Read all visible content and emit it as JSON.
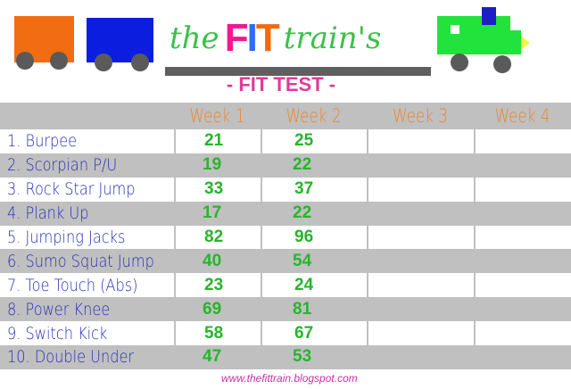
{
  "logo": {
    "prefix": "the",
    "fit": "FIT",
    "suffix": "train's"
  },
  "subtitle": "- FIT TEST -",
  "colors": {
    "orange_car": "#f26d12",
    "blue_car": "#0b1ee0",
    "engine": "#22e33c",
    "header_row": "#c0c0c0",
    "week_text": "#e8882f",
    "exercise_text": "#2a2fb8",
    "score_text": "#27b52b",
    "url_text": "#c930a8"
  },
  "table": {
    "headers": [
      "",
      "Week 1",
      "Week 2",
      "Week 3",
      "Week 4"
    ],
    "rows": [
      {
        "exercise": "1. Burpee",
        "scores": [
          "21",
          "25",
          "",
          ""
        ]
      },
      {
        "exercise": "2. Scorpian P/U",
        "scores": [
          "19",
          "22",
          "",
          ""
        ]
      },
      {
        "exercise": "3. Rock Star Jump",
        "scores": [
          "33",
          "37",
          "",
          ""
        ]
      },
      {
        "exercise": "4. Plank Up",
        "scores": [
          "17",
          "22",
          "",
          ""
        ]
      },
      {
        "exercise": "5. Jumping Jacks",
        "scores": [
          "82",
          "96",
          "",
          ""
        ]
      },
      {
        "exercise": "6. Sumo Squat Jump",
        "scores": [
          "40",
          "54",
          "",
          ""
        ]
      },
      {
        "exercise": "7. Toe Touch (Abs)",
        "scores": [
          "23",
          "24",
          "",
          ""
        ]
      },
      {
        "exercise": "8. Power Knee",
        "scores": [
          "69",
          "81",
          "",
          ""
        ]
      },
      {
        "exercise": "9. Switch Kick",
        "scores": [
          "58",
          "67",
          "",
          ""
        ]
      },
      {
        "exercise": "10. Double Under",
        "scores": [
          "47",
          "53",
          "",
          ""
        ]
      }
    ]
  },
  "footer": {
    "url": "www.thefittrain.blogspot.com"
  }
}
